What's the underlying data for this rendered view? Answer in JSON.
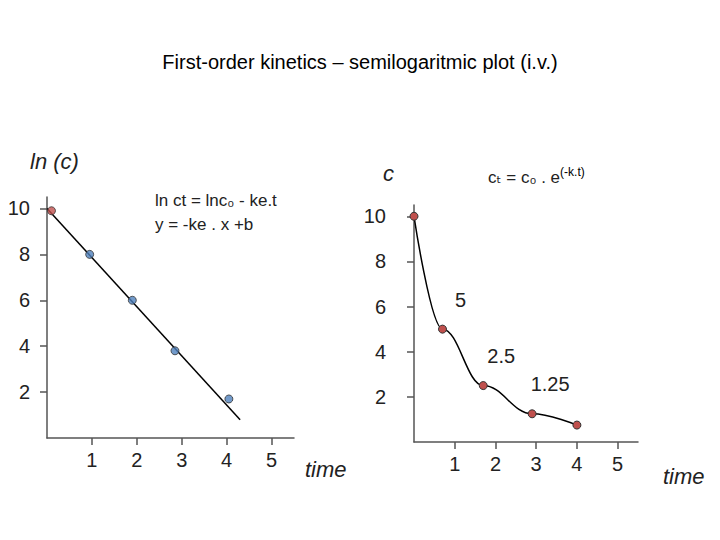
{
  "title": [
    {
      "text": "First-order kinetics –",
      "color": "#2e75b6"
    },
    {
      "text": "semilogaritmic plot (i.v.)",
      "color": "#e03030"
    }
  ],
  "chart_data": [
    {
      "type": "scatter",
      "ylabel": "ln (c)",
      "xlabel": "time",
      "annotations": [
        "ln ct = lnc₀ - ke.t",
        "y = -ke . x +b"
      ],
      "xlim": [
        0,
        5.5
      ],
      "xticks": [
        1,
        2,
        3,
        4,
        5
      ],
      "ylim": [
        0,
        10.5
      ],
      "yticks": [
        2,
        4,
        6,
        8,
        10
      ],
      "grid": false,
      "series": [
        {
          "type": "line",
          "color": "#000000",
          "marker": "none",
          "line_style": "solid",
          "x": [
            0,
            4.3
          ],
          "values": [
            10.0,
            0.8
          ]
        },
        {
          "type": "scatter",
          "marker": "circle",
          "colors": [
            "#c0504d",
            "#4f81bd",
            "#4f81bd",
            "#4f81bd",
            "#4f81bd"
          ],
          "x": [
            0.1,
            0.95,
            1.9,
            2.85,
            4.05
          ],
          "values": [
            9.9,
            8.0,
            6.0,
            3.8,
            1.7
          ]
        }
      ]
    },
    {
      "type": "line",
      "ylabel": "c",
      "xlabel": "time",
      "annotation": {
        "text": "cₜ = c₀ . e",
        "superscript": "(-k.t)"
      },
      "xlim": [
        0,
        5.5
      ],
      "xticks": [
        1,
        2,
        3,
        4,
        5
      ],
      "ylim": [
        0,
        10.5
      ],
      "yticks": [
        2,
        4,
        6,
        8,
        10
      ],
      "grid": false,
      "series": [
        {
          "type": "line",
          "color": "#000000",
          "line_style": "smooth",
          "marker": "circle",
          "colors": [
            "#c0504d",
            "#c0504d",
            "#c0504d",
            "#c0504d",
            "#c0504d"
          ],
          "x": [
            0,
            0.7,
            1.7,
            2.9,
            4.0
          ],
          "values": [
            10,
            5,
            2.5,
            1.25,
            0.75
          ],
          "data_labels": true,
          "value_labels": [
            null,
            "5",
            "2.5",
            "1.25",
            null
          ]
        }
      ]
    }
  ]
}
